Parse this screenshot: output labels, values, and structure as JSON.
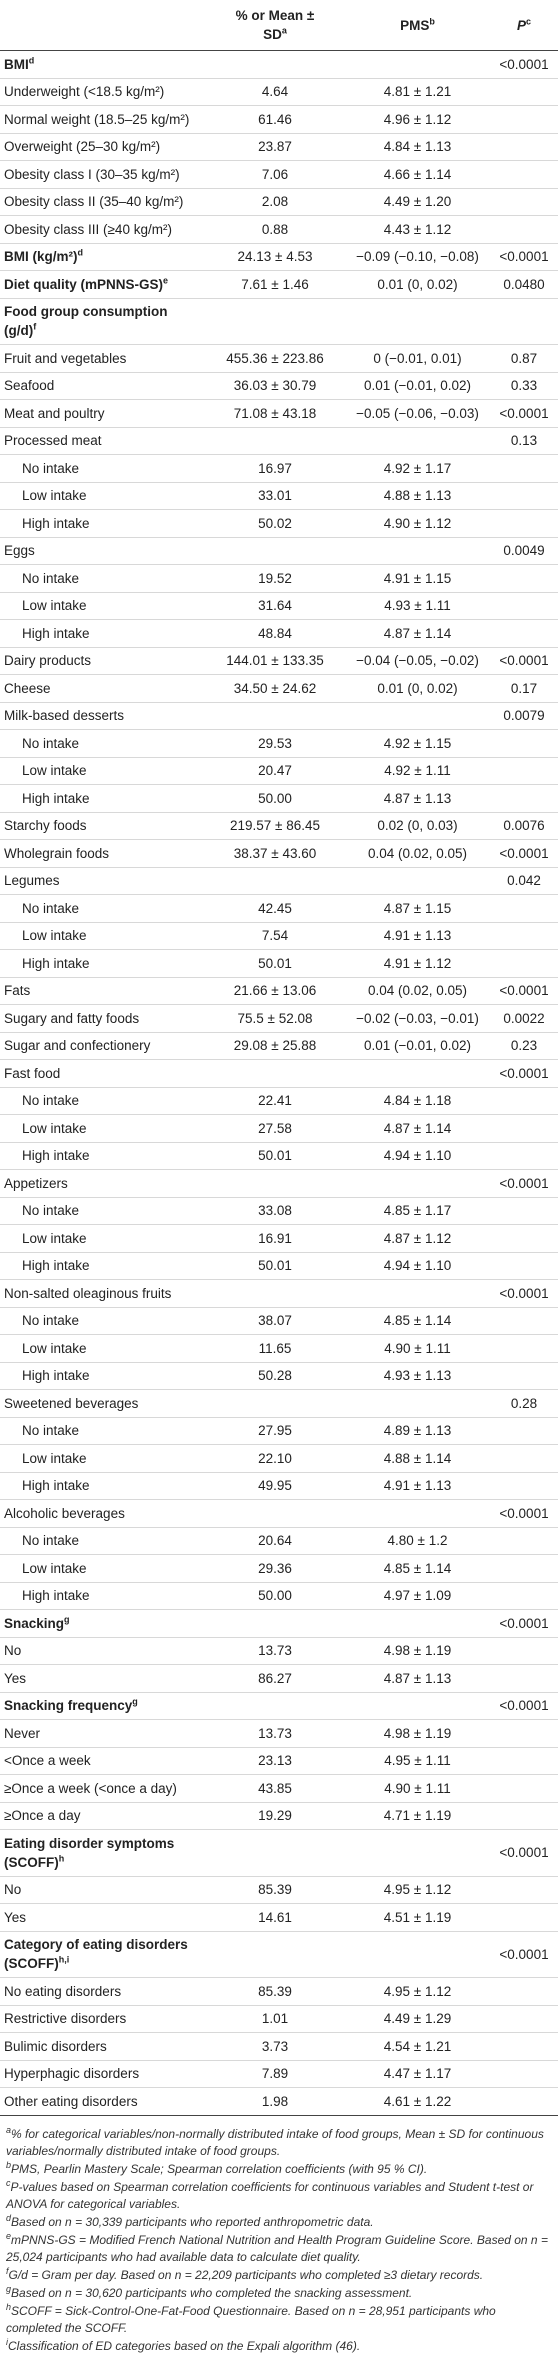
{
  "header": {
    "col2": {
      "text": "% or Mean ± SD",
      "sup": "a"
    },
    "col3": {
      "text": "PMS",
      "sup": "b"
    },
    "col4": {
      "text": "P",
      "sup": "c"
    }
  },
  "table": {
    "rows": [
      {
        "label": "BMI",
        "sup": "d",
        "bold": true,
        "p": "<0.0001"
      },
      {
        "label": "Underweight (<18.5 kg/m²)",
        "mean": "4.64",
        "pms": "4.81 ± 1.21"
      },
      {
        "label": "Normal weight (18.5–25 kg/m²)",
        "mean": "61.46",
        "pms": "4.96 ± 1.12"
      },
      {
        "label": "Overweight (25–30 kg/m²)",
        "mean": "23.87",
        "pms": "4.84 ± 1.13"
      },
      {
        "label": "Obesity class I (30–35 kg/m²)",
        "mean": "7.06",
        "pms": "4.66 ± 1.14"
      },
      {
        "label": "Obesity class II (35–40 kg/m²)",
        "mean": "2.08",
        "pms": "4.49 ± 1.20"
      },
      {
        "label": "Obesity class III (≥40 kg/m²)",
        "mean": "0.88",
        "pms": "4.43 ± 1.12"
      },
      {
        "label": "BMI (kg/m²)",
        "sup": "d",
        "bold": true,
        "mean": "24.13 ± 4.53",
        "pms": "−0.09 (−0.10, −0.08)",
        "p": "<0.0001"
      },
      {
        "label": "Diet quality (mPNNS-GS)",
        "sup": "e",
        "bold": true,
        "mean": "7.61 ± 1.46",
        "pms": "0.01 (0, 0.02)",
        "p": "0.0480"
      },
      {
        "label": "Food group consumption (g/d)",
        "sup": "f",
        "bold": true
      },
      {
        "label": "Fruit and vegetables",
        "mean": "455.36 ± 223.86",
        "pms": "0 (−0.01, 0.01)",
        "p": "0.87"
      },
      {
        "label": "Seafood",
        "mean": "36.03 ± 30.79",
        "pms": "0.01 (−0.01, 0.02)",
        "p": "0.33"
      },
      {
        "label": "Meat and poultry",
        "mean": "71.08 ± 43.18",
        "pms": "−0.05 (−0.06, −0.03)",
        "p": "<0.0001"
      },
      {
        "label": "Processed meat",
        "p": "0.13"
      },
      {
        "label": "No intake",
        "indent": true,
        "mean": "16.97",
        "pms": "4.92 ± 1.17"
      },
      {
        "label": "Low intake",
        "indent": true,
        "mean": "33.01",
        "pms": "4.88 ± 1.13"
      },
      {
        "label": "High intake",
        "indent": true,
        "mean": "50.02",
        "pms": "4.90 ± 1.12"
      },
      {
        "label": "Eggs",
        "p": "0.0049"
      },
      {
        "label": "No intake",
        "indent": true,
        "mean": "19.52",
        "pms": "4.91 ± 1.15"
      },
      {
        "label": "Low intake",
        "indent": true,
        "mean": "31.64",
        "pms": "4.93 ± 1.11"
      },
      {
        "label": "High intake",
        "indent": true,
        "mean": "48.84",
        "pms": "4.87 ± 1.14"
      },
      {
        "label": "Dairy products",
        "mean": "144.01 ± 133.35",
        "pms": "−0.04 (−0.05, −0.02)",
        "p": "<0.0001"
      },
      {
        "label": "Cheese",
        "mean": "34.50 ± 24.62",
        "pms": "0.01 (0, 0.02)",
        "p": "0.17"
      },
      {
        "label": "Milk-based desserts",
        "p": "0.0079"
      },
      {
        "label": "No intake",
        "indent": true,
        "mean": "29.53",
        "pms": "4.92 ± 1.15"
      },
      {
        "label": "Low intake",
        "indent": true,
        "mean": "20.47",
        "pms": "4.92 ± 1.11"
      },
      {
        "label": "High intake",
        "indent": true,
        "mean": "50.00",
        "pms": "4.87 ± 1.13"
      },
      {
        "label": "Starchy foods",
        "mean": "219.57 ± 86.45",
        "pms": "0.02 (0, 0.03)",
        "p": "0.0076"
      },
      {
        "label": "Wholegrain foods",
        "mean": "38.37 ± 43.60",
        "pms": "0.04 (0.02, 0.05)",
        "p": "<0.0001"
      },
      {
        "label": "Legumes",
        "p": "0.042"
      },
      {
        "label": "No intake",
        "indent": true,
        "mean": "42.45",
        "pms": "4.87 ± 1.15"
      },
      {
        "label": "Low intake",
        "indent": true,
        "mean": "7.54",
        "pms": "4.91 ± 1.13"
      },
      {
        "label": "High intake",
        "indent": true,
        "mean": "50.01",
        "pms": "4.91 ± 1.12"
      },
      {
        "label": "Fats",
        "mean": "21.66 ± 13.06",
        "pms": "0.04 (0.02, 0.05)",
        "p": "<0.0001"
      },
      {
        "label": "Sugary and fatty foods",
        "mean": "75.5 ± 52.08",
        "pms": "−0.02 (−0.03, −0.01)",
        "p": "0.0022"
      },
      {
        "label": "Sugar and confectionery",
        "mean": "29.08 ± 25.88",
        "pms": "0.01 (−0.01, 0.02)",
        "p": "0.23"
      },
      {
        "label": "Fast food",
        "p": "<0.0001"
      },
      {
        "label": "No intake",
        "indent": true,
        "mean": "22.41",
        "pms": "4.84 ± 1.18"
      },
      {
        "label": "Low intake",
        "indent": true,
        "mean": "27.58",
        "pms": "4.87 ± 1.14"
      },
      {
        "label": "High intake",
        "indent": true,
        "mean": "50.01",
        "pms": "4.94 ± 1.10"
      },
      {
        "label": "Appetizers",
        "p": "<0.0001"
      },
      {
        "label": "No intake",
        "indent": true,
        "mean": "33.08",
        "pms": "4.85 ± 1.17"
      },
      {
        "label": "Low intake",
        "indent": true,
        "mean": "16.91",
        "pms": "4.87 ± 1.12"
      },
      {
        "label": "High intake",
        "indent": true,
        "mean": "50.01",
        "pms": "4.94 ± 1.10"
      },
      {
        "label": "Non-salted oleaginous fruits",
        "p": "<0.0001"
      },
      {
        "label": "No intake",
        "indent": true,
        "mean": "38.07",
        "pms": "4.85 ± 1.14"
      },
      {
        "label": "Low intake",
        "indent": true,
        "mean": "11.65",
        "pms": "4.90 ± 1.11"
      },
      {
        "label": "High intake",
        "indent": true,
        "mean": "50.28",
        "pms": "4.93 ± 1.13"
      },
      {
        "label": "Sweetened beverages",
        "p": "0.28"
      },
      {
        "label": "No intake",
        "indent": true,
        "mean": "27.95",
        "pms": "4.89 ± 1.13"
      },
      {
        "label": "Low intake",
        "indent": true,
        "mean": "22.10",
        "pms": "4.88 ± 1.14"
      },
      {
        "label": "High intake",
        "indent": true,
        "mean": "49.95",
        "pms": "4.91 ± 1.13"
      },
      {
        "label": "Alcoholic beverages",
        "p": "<0.0001"
      },
      {
        "label": "No intake",
        "indent": true,
        "mean": "20.64",
        "pms": "4.80 ± 1.2"
      },
      {
        "label": "Low intake",
        "indent": true,
        "mean": "29.36",
        "pms": "4.85 ± 1.14"
      },
      {
        "label": "High intake",
        "indent": true,
        "mean": "50.00",
        "pms": "4.97 ± 1.09"
      },
      {
        "label": "Snacking",
        "sup": "g",
        "bold": true,
        "p": "<0.0001"
      },
      {
        "label": "No",
        "mean": "13.73",
        "pms": "4.98 ± 1.19"
      },
      {
        "label": "Yes",
        "mean": "86.27",
        "pms": "4.87 ± 1.13"
      },
      {
        "label": "Snacking frequency",
        "sup": "g",
        "bold": true,
        "p": "<0.0001"
      },
      {
        "label": "Never",
        "mean": "13.73",
        "pms": "4.98 ± 1.19"
      },
      {
        "label": "<Once a week",
        "mean": "23.13",
        "pms": "4.95 ± 1.11"
      },
      {
        "label": "≥Once a week (<once a day)",
        "mean": "43.85",
        "pms": "4.90 ± 1.11"
      },
      {
        "label": "≥Once a day",
        "mean": "19.29",
        "pms": "4.71 ± 1.19"
      },
      {
        "label": "Eating disorder symptoms (SCOFF)",
        "sup": "h",
        "bold": true,
        "p": "<0.0001"
      },
      {
        "label": "No",
        "mean": "85.39",
        "pms": "4.95 ± 1.12"
      },
      {
        "label": "Yes",
        "mean": "14.61",
        "pms": "4.51 ± 1.19"
      },
      {
        "label": "Category of eating disorders (SCOFF)",
        "sup": "h,i",
        "bold": true,
        "p": "<0.0001"
      },
      {
        "label": "No eating disorders",
        "mean": "85.39",
        "pms": "4.95 ± 1.12"
      },
      {
        "label": "Restrictive disorders",
        "mean": "1.01",
        "pms": "4.49 ± 1.29"
      },
      {
        "label": "Bulimic disorders",
        "mean": "3.73",
        "pms": "4.54 ± 1.21"
      },
      {
        "label": "Hyperphagic disorders",
        "mean": "7.89",
        "pms": "4.47 ± 1.17"
      },
      {
        "label": "Other eating disorders",
        "mean": "1.98",
        "pms": "4.61 ± 1.22"
      }
    ]
  },
  "footnotes": [
    {
      "mark": "a",
      "text": "% for categorical variables/non-normally distributed intake of food groups, Mean ± SD for continuous variables/normally distributed intake of food groups."
    },
    {
      "mark": "b",
      "text": "PMS, Pearlin Mastery Scale; Spearman correlation coefficients (with 95 % CI)."
    },
    {
      "mark": "c",
      "text": "P-values based on Spearman correlation coefficients for continuous variables and Student t-test or ANOVA for categorical variables."
    },
    {
      "mark": "d",
      "text": "Based on n = 30,339 participants who reported anthropometric data."
    },
    {
      "mark": "e",
      "text": "mPNNS-GS = Modified French National Nutrition and Health Program Guideline Score. Based on n = 25,024 participants who had available data to calculate diet quality."
    },
    {
      "mark": "f",
      "text": "G/d = Gram per day. Based on n = 22,209 participants who completed ≥3 dietary records."
    },
    {
      "mark": "g",
      "text": "Based on n = 30,620 participants who completed the snacking assessment."
    },
    {
      "mark": "h",
      "text": "SCOFF = Sick-Control-One-Fat-Food Questionnaire. Based on n = 28,951 participants who completed the SCOFF."
    },
    {
      "mark": "i",
      "text": "Classification of ED categories based on the Expali algorithm (46)."
    }
  ]
}
